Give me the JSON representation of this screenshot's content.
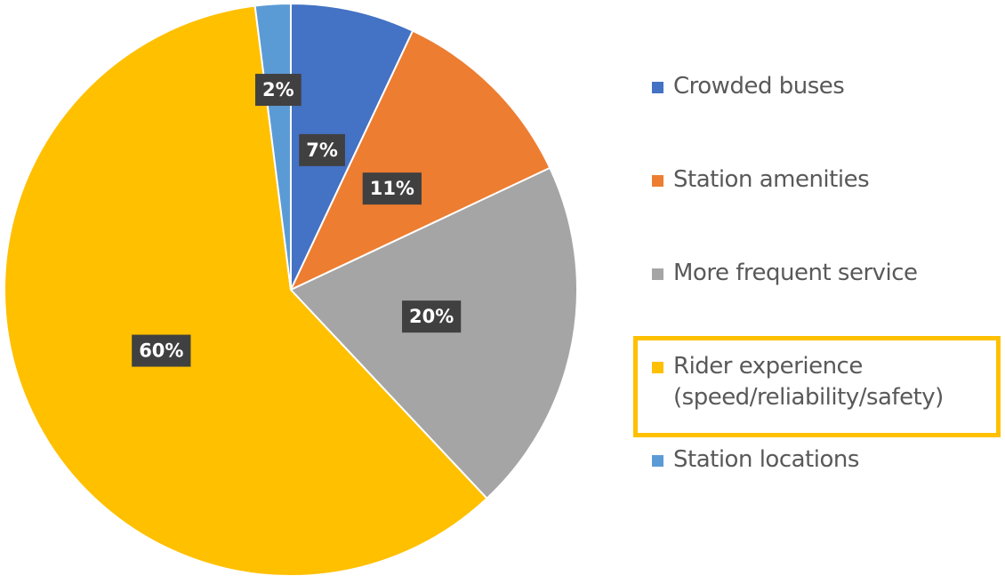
{
  "chart_data": {
    "type": "pie",
    "categories": [
      "Crowded buses",
      "Station amenities",
      "More frequent service",
      "Rider experience (speed/reliability/safety)",
      "Station locations"
    ],
    "values": [
      7,
      11,
      20,
      60,
      2
    ],
    "value_labels": [
      "7%",
      "11%",
      "20%",
      "60%",
      "2%"
    ],
    "colors": [
      "#4472c4",
      "#ed7d31",
      "#a5a5a5",
      "#ffc000",
      "#5b9bd5"
    ]
  }
}
